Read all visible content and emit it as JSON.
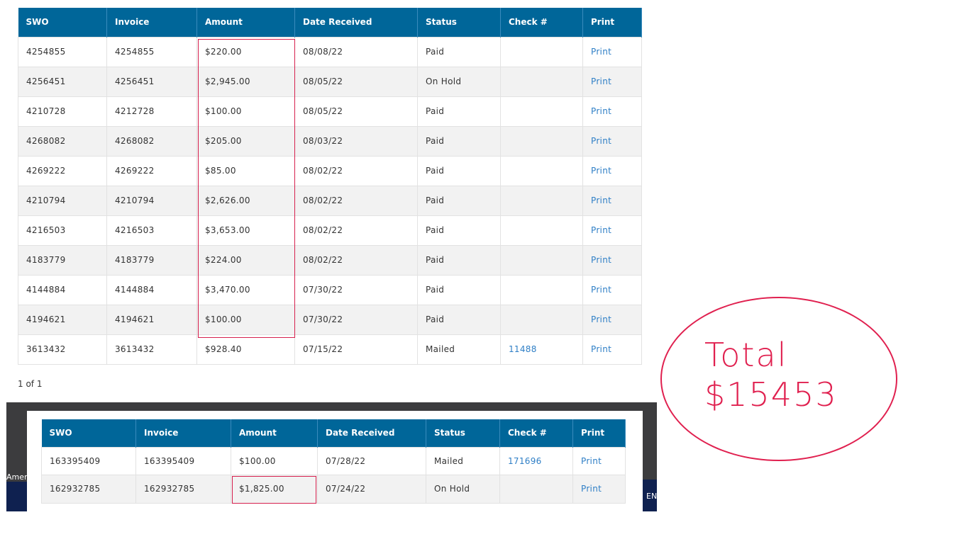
{
  "headers": [
    "SWO",
    "Invoice",
    "Amount",
    "Date Received",
    "Status",
    "Check #",
    "Print"
  ],
  "table1": {
    "rows": [
      [
        "4254855",
        "4254855",
        "$220.00",
        "08/08/22",
        "Paid",
        "",
        "Print"
      ],
      [
        "4256451",
        "4256451",
        "$2,945.00",
        "08/05/22",
        "On Hold",
        "",
        "Print"
      ],
      [
        "4210728",
        "4212728",
        "$100.00",
        "08/05/22",
        "Paid",
        "",
        "Print"
      ],
      [
        "4268082",
        "4268082",
        "$205.00",
        "08/03/22",
        "Paid",
        "",
        "Print"
      ],
      [
        "4269222",
        "4269222",
        "$85.00",
        "08/02/22",
        "Paid",
        "",
        "Print"
      ],
      [
        "4210794",
        "4210794",
        "$2,626.00",
        "08/02/22",
        "Paid",
        "",
        "Print"
      ],
      [
        "4216503",
        "4216503",
        "$3,653.00",
        "08/02/22",
        "Paid",
        "",
        "Print"
      ],
      [
        "4183779",
        "4183779",
        "$224.00",
        "08/02/22",
        "Paid",
        "",
        "Print"
      ],
      [
        "4144884",
        "4144884",
        "$3,470.00",
        "07/30/22",
        "Paid",
        "",
        "Print"
      ],
      [
        "4194621",
        "4194621",
        "$100.00",
        "07/30/22",
        "Paid",
        "",
        "Print"
      ],
      [
        "3613432",
        "3613432",
        "$928.40",
        "07/15/22",
        "Mailed",
        "11488",
        "Print"
      ]
    ]
  },
  "pager": "1 of 1",
  "table2": {
    "rows": [
      [
        "163395409",
        "163395409",
        "$100.00",
        "07/28/22",
        "Mailed",
        "171696",
        "Print"
      ],
      [
        "162932785",
        "162932785",
        "$1,825.00",
        "07/24/22",
        "On Hold",
        "",
        "Print"
      ]
    ]
  },
  "background_fragments": {
    "left": "Ameri",
    "right": "EN"
  },
  "annotation": {
    "line1": "Total",
    "line2": "$15453",
    "color": "#e0204f"
  },
  "colors": {
    "header": "#006699",
    "link": "#2f7fc6",
    "highlight": "#d6204e"
  }
}
